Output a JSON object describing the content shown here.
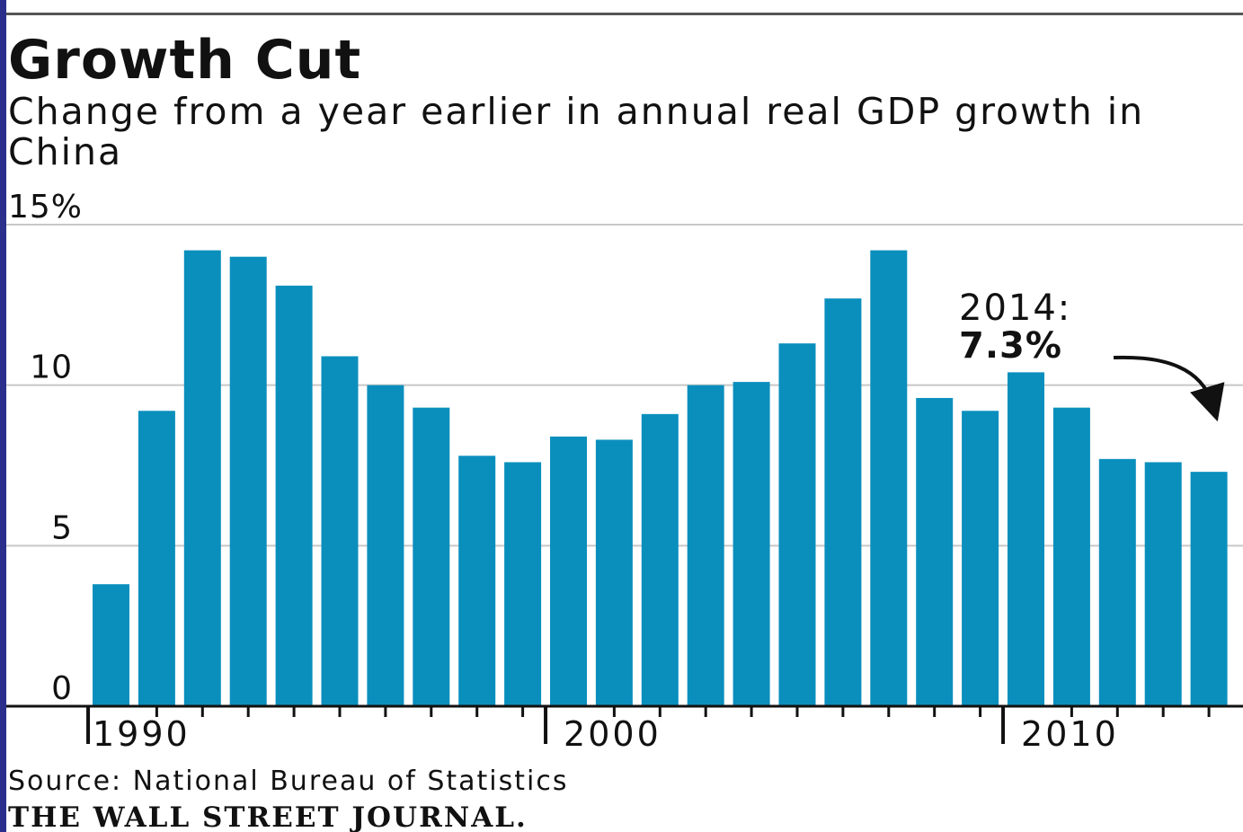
{
  "chart_data": {
    "type": "bar",
    "title": "Growth Cut",
    "subtitle": "Change from a year earlier in annual real GDP growth in China",
    "categories": [
      "1990",
      "1991",
      "1992",
      "1993",
      "1994",
      "1995",
      "1996",
      "1997",
      "1998",
      "1999",
      "2000",
      "2001",
      "2002",
      "2003",
      "2004",
      "2005",
      "2006",
      "2007",
      "2008",
      "2009",
      "2010",
      "2011",
      "2012",
      "2013",
      "2014"
    ],
    "values": [
      3.8,
      9.2,
      14.2,
      14.0,
      13.1,
      10.9,
      10.0,
      9.3,
      7.8,
      7.6,
      8.4,
      8.3,
      9.1,
      10.0,
      10.1,
      11.3,
      12.7,
      14.2,
      9.6,
      9.2,
      10.4,
      9.3,
      7.7,
      7.6,
      7.3
    ],
    "x_tick_labels": [
      "1990",
      "2000",
      "2010"
    ],
    "y_tick_labels": [
      "15%",
      "10",
      "5",
      "0"
    ],
    "y_ticks": [
      15,
      10,
      5,
      0
    ],
    "ylim": [
      0,
      15
    ],
    "grid": true,
    "legend": "none",
    "bar_color": "#0a8fbd",
    "annotation": {
      "year_label": "2014:",
      "value_label": "7.3%"
    }
  },
  "source": "Source: National Bureau of Statistics",
  "publisher": "THE WALL STREET JOURNAL."
}
